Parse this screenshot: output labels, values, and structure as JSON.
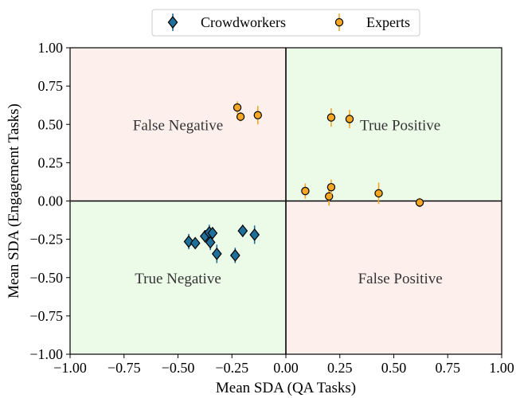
{
  "chart_data": {
    "type": "scatter",
    "title": "",
    "xlabel": "Mean SDA (QA Tasks)",
    "ylabel": "Mean SDA (Engagement Tasks)",
    "xlim": [
      -1.0,
      1.0
    ],
    "ylim": [
      -1.0,
      1.0
    ],
    "xticks": [
      "−1.00",
      "−0.75",
      "−0.50",
      "−0.25",
      "0.00",
      "0.25",
      "0.50",
      "0.75",
      "1.00"
    ],
    "yticks": [
      "−1.00",
      "−0.75",
      "−0.50",
      "−0.25",
      "0.00",
      "0.25",
      "0.50",
      "0.75",
      "1.00"
    ],
    "xtick_values": [
      -1.0,
      -0.75,
      -0.5,
      -0.25,
      0.0,
      0.25,
      0.5,
      0.75,
      1.0
    ],
    "ytick_values": [
      -1.0,
      -0.75,
      -0.5,
      -0.25,
      0.0,
      0.25,
      0.5,
      0.75,
      1.0
    ],
    "legend_position": "top-center",
    "quadrants": [
      {
        "label": "False Negative",
        "x": -0.5,
        "y": 0.5,
        "color": "#fdf0ec"
      },
      {
        "label": "True Positive",
        "x": 0.53,
        "y": 0.5,
        "color": "#ecfbe8"
      },
      {
        "label": "True Negative",
        "x": -0.5,
        "y": -0.5,
        "color": "#ecfbe8"
      },
      {
        "label": "False Positive",
        "x": 0.53,
        "y": -0.5,
        "color": "#fdf0ec"
      }
    ],
    "series": [
      {
        "name": "Crowdworkers",
        "marker": "diamond",
        "color": "#1f6f9a",
        "points": [
          {
            "x": -0.45,
            "y": -0.265,
            "err": 0.05
          },
          {
            "x": -0.42,
            "y": -0.275,
            "err": 0.03
          },
          {
            "x": -0.375,
            "y": -0.23,
            "err": 0.04
          },
          {
            "x": -0.355,
            "y": -0.205,
            "err": 0.05
          },
          {
            "x": -0.35,
            "y": -0.27,
            "err": 0.05
          },
          {
            "x": -0.34,
            "y": -0.21,
            "err": 0.04
          },
          {
            "x": -0.32,
            "y": -0.345,
            "err": 0.06
          },
          {
            "x": -0.235,
            "y": -0.355,
            "err": 0.05
          },
          {
            "x": -0.2,
            "y": -0.195,
            "err": 0.04
          },
          {
            "x": -0.145,
            "y": -0.22,
            "err": 0.06
          }
        ]
      },
      {
        "name": "Experts",
        "marker": "circle",
        "color": "#f5a623",
        "points": [
          {
            "x": -0.225,
            "y": 0.61,
            "err": 0.04
          },
          {
            "x": -0.21,
            "y": 0.55,
            "err": 0.03
          },
          {
            "x": -0.13,
            "y": 0.56,
            "err": 0.06
          },
          {
            "x": 0.21,
            "y": 0.545,
            "err": 0.06
          },
          {
            "x": 0.295,
            "y": 0.535,
            "err": 0.06
          },
          {
            "x": 0.09,
            "y": 0.065,
            "err": 0.05
          },
          {
            "x": 0.2,
            "y": 0.03,
            "err": 0.06
          },
          {
            "x": 0.21,
            "y": 0.09,
            "err": 0.05
          },
          {
            "x": 0.43,
            "y": 0.05,
            "err": 0.07
          },
          {
            "x": 0.62,
            "y": -0.01,
            "err": 0.03
          }
        ]
      }
    ]
  }
}
